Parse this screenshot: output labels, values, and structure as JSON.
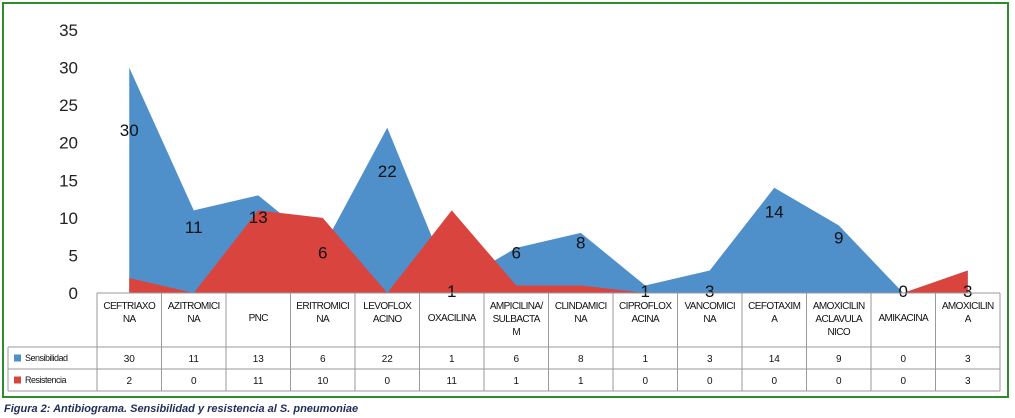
{
  "chart_data": {
    "type": "area",
    "categories": [
      [
        "CEFTRIAXO",
        "NA"
      ],
      [
        "AZITROMICI",
        "NA"
      ],
      [
        "PNC"
      ],
      [
        "ERITROMICI",
        "NA"
      ],
      [
        "LEVOFLOX",
        "ACINO"
      ],
      [
        "OXACILINA"
      ],
      [
        "AMPICILINA/",
        "SULBACTA",
        "M"
      ],
      [
        "CLINDAMICI",
        "NA"
      ],
      [
        "CIPROFLOX",
        "ACINA"
      ],
      [
        "VANCOMICI",
        "NA"
      ],
      [
        "CEFOTAXIM",
        "A"
      ],
      [
        "AMOXICILIN",
        "ACLAVULA",
        "NICO"
      ],
      [
        "AMIKACINA"
      ],
      [
        "AMOXICILIN",
        "A"
      ]
    ],
    "series": [
      {
        "name": "Sensibilidad",
        "color": "#4f8fca",
        "values": [
          30,
          11,
          13,
          6,
          22,
          1,
          6,
          8,
          1,
          3,
          14,
          9,
          0,
          3
        ]
      },
      {
        "name": "Resistencia",
        "color": "#d9453e",
        "values": [
          2,
          0,
          11,
          10,
          0,
          11,
          1,
          1,
          0,
          0,
          0,
          0,
          0,
          3
        ]
      }
    ],
    "data_labels": [
      "30",
      "11",
      "13",
      "6",
      "22",
      "1",
      "6",
      "8",
      "1",
      "3",
      "14",
      "9",
      "0",
      "3"
    ],
    "ylim": [
      0,
      35
    ],
    "yticks": [
      "0",
      "5",
      "10",
      "15",
      "20",
      "25",
      "30",
      "35"
    ],
    "data_table": true,
    "grid": false
  },
  "caption": {
    "prefix": "Figura 2: Antibiograma. Sensibilidad y resistencia al ",
    "species": "S. pneumoniae"
  }
}
